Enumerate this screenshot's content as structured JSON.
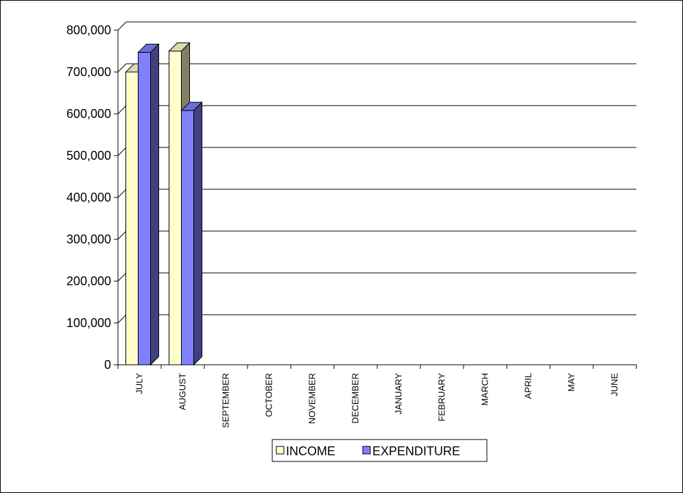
{
  "chart_data": {
    "type": "bar",
    "title": "",
    "xlabel": "",
    "ylabel": "",
    "categories": [
      "JULY",
      "AUGUST",
      "SEPTEMBER",
      "OCTOBER",
      "NOVEMBER",
      "DECEMBER",
      "JANUARY",
      "FEBRUARY",
      "MARCH",
      "APRIL",
      "MAY",
      "JUNE"
    ],
    "series": [
      {
        "name": "INCOME",
        "values": [
          700000,
          750000,
          null,
          null,
          null,
          null,
          null,
          null,
          null,
          null,
          null,
          null
        ],
        "color": "#FFFFCC"
      },
      {
        "name": "EXPENDITURE",
        "values": [
          747000,
          608000,
          null,
          null,
          null,
          null,
          null,
          null,
          null,
          null,
          null,
          null
        ],
        "color": "#7F7FFF"
      }
    ],
    "ylim": [
      0,
      800000
    ],
    "yticks": [
      0,
      100000,
      200000,
      300000,
      400000,
      500000,
      600000,
      700000,
      800000
    ],
    "ytick_labels": [
      "0",
      "100,000",
      "200,000",
      "300,000",
      "400,000",
      "500,000",
      "600,000",
      "700,000",
      "800,000"
    ],
    "grid": true,
    "legend_position": "bottom",
    "style": "3d-clustered-column"
  }
}
